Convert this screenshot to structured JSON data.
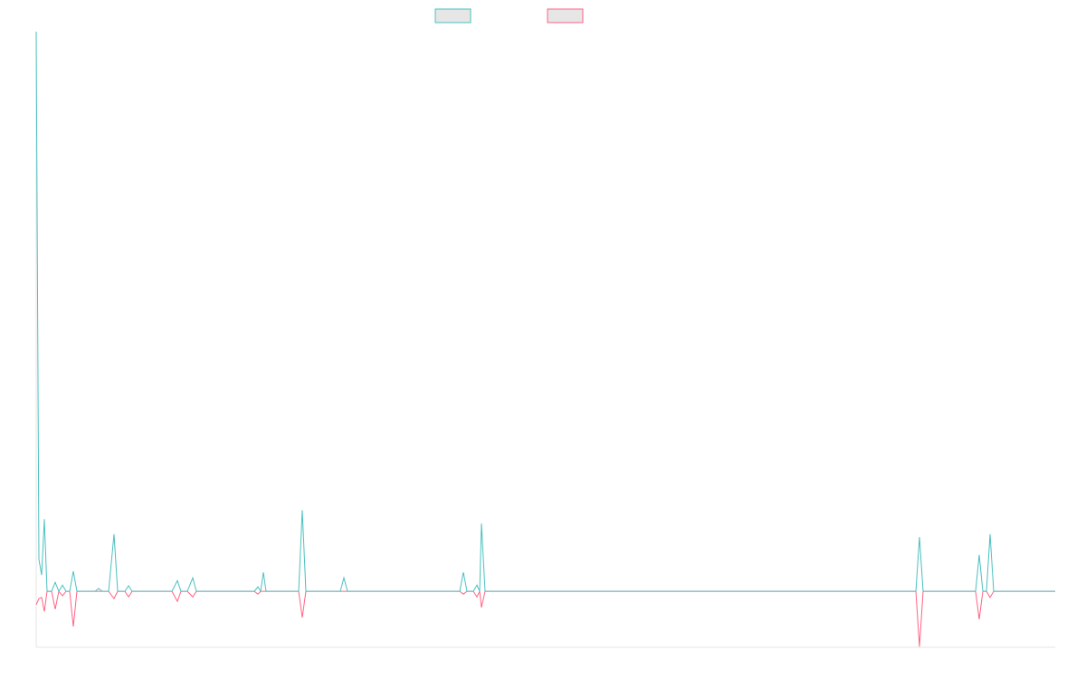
{
  "chart_data": {
    "type": "line",
    "x": [
      0,
      3,
      6,
      9,
      12,
      17,
      21,
      25,
      29,
      33,
      37,
      41,
      45,
      65,
      69,
      73,
      80,
      86,
      90,
      98,
      102,
      106,
      150,
      156,
      160,
      167,
      173,
      177,
      241,
      245,
      248,
      251,
      254,
      290,
      294,
      298,
      336,
      340,
      344,
      468,
      472,
      476,
      483,
      487,
      490,
      492,
      496,
      972,
      976,
      980,
      1038,
      1042,
      1046,
      1050,
      1054,
      1058,
      1126
    ],
    "xlim": [
      0,
      1126
    ],
    "ylim": [
      -10,
      100
    ],
    "series": [
      {
        "color": "#4bc0c0",
        "values": [
          100,
          5.7,
          2.9,
          12.9,
          0,
          0,
          1.6,
          0,
          1.1,
          0,
          0,
          3.6,
          0,
          0,
          0.5,
          0,
          0,
          10.2,
          0,
          0,
          1,
          0,
          0,
          1.9,
          0,
          0,
          2.4,
          0,
          0,
          0.8,
          0,
          3.4,
          0,
          0,
          14.5,
          0,
          0,
          2.4,
          0,
          0,
          3.4,
          0,
          0,
          1.1,
          0,
          12.1,
          0,
          0,
          9.7,
          0,
          0,
          6.5,
          0,
          0,
          10.2,
          0,
          0
        ]
      },
      {
        "color": "#ff6384",
        "values": [
          -2.4,
          -1.3,
          -1.1,
          -3.6,
          0,
          0,
          -3.2,
          0,
          -0.8,
          0,
          0,
          -6.3,
          0,
          0,
          0,
          0,
          0,
          -1.3,
          0,
          0,
          -1,
          0,
          0,
          -1.8,
          0,
          0,
          -1,
          0,
          0,
          -0.5,
          0,
          0,
          0,
          0,
          -4.7,
          0,
          0,
          0,
          0,
          0,
          -0.5,
          0,
          0,
          -1,
          0,
          -2.9,
          0,
          0,
          -9.9,
          0,
          0,
          -5,
          0,
          0,
          -1.1,
          0,
          0
        ]
      }
    ]
  }
}
